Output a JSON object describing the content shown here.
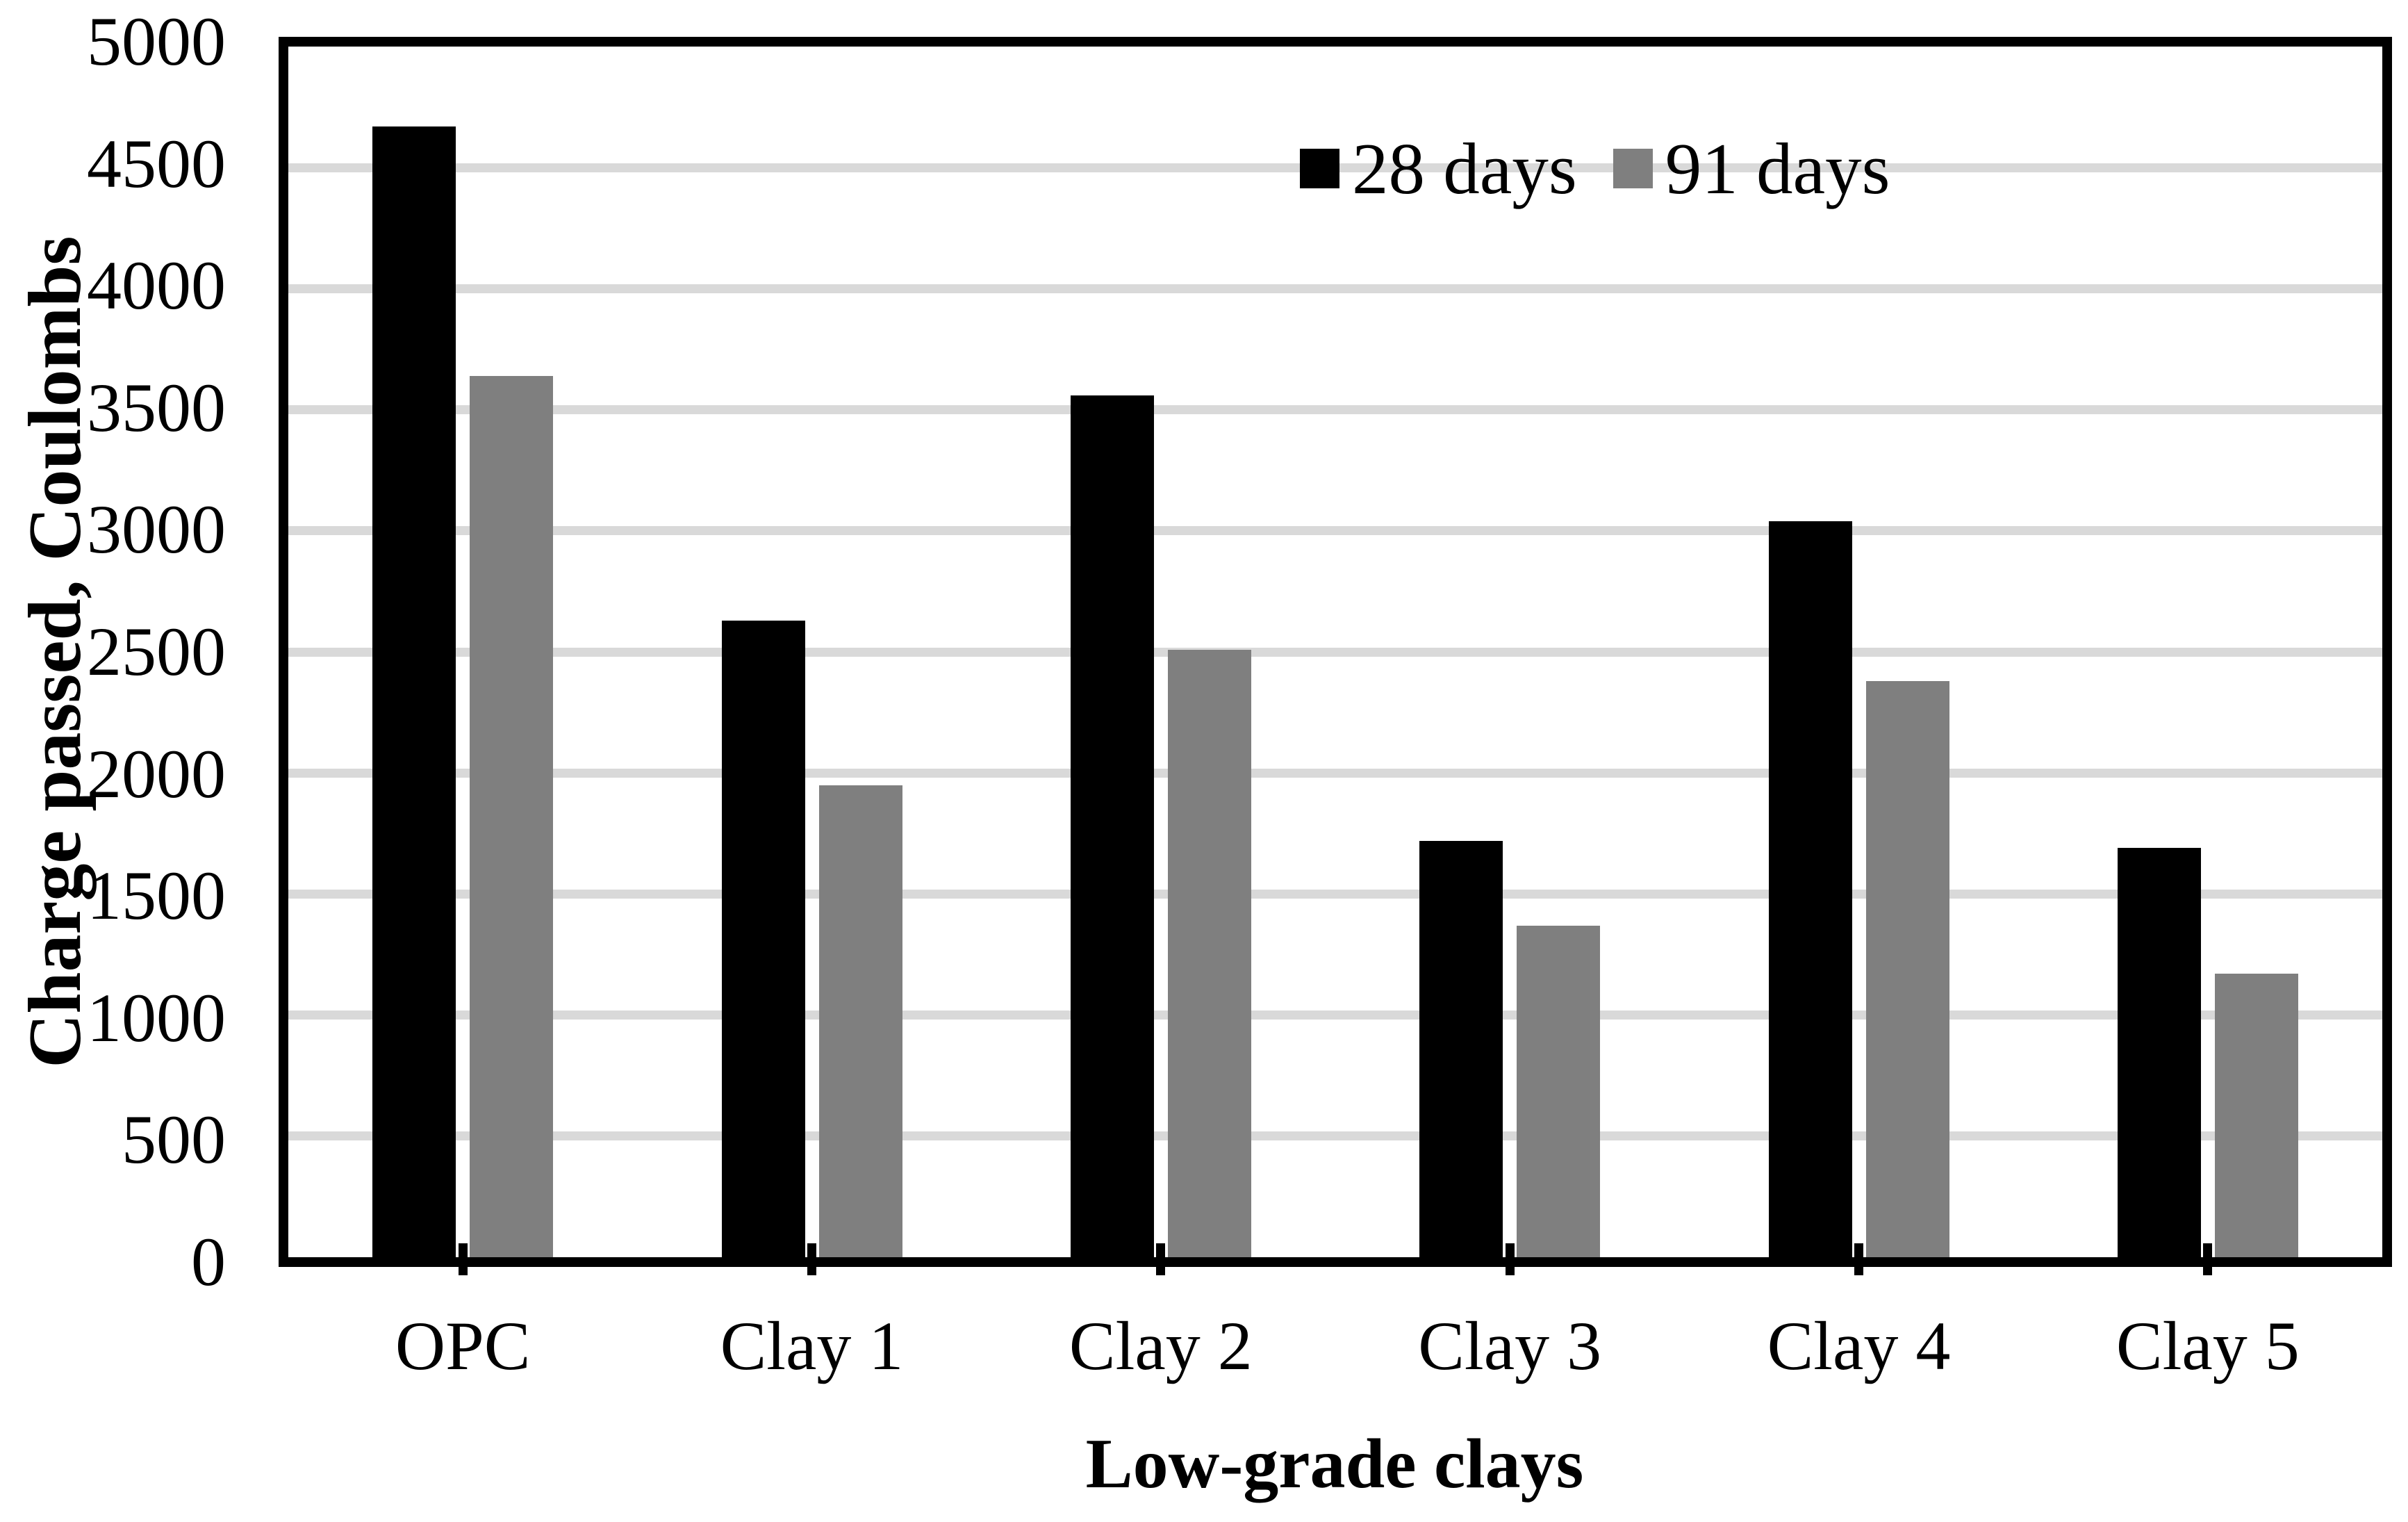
{
  "chart_data": {
    "type": "bar",
    "title": "",
    "categories": [
      "OPC",
      "Clay 1",
      "Clay 2",
      "Clay 3",
      "Clay 4",
      "Clay 5"
    ],
    "series": [
      {
        "name": "28 days",
        "color": "#000000",
        "values": [
          4670,
          2630,
          3560,
          1720,
          3040,
          1690
        ]
      },
      {
        "name": "91 days",
        "color": "#7F7F7F",
        "values": [
          3640,
          1950,
          2510,
          1370,
          2380,
          1170
        ]
      }
    ],
    "xlabel": "Low-grade clays",
    "ylabel": "Charge passed, Coulombs",
    "ylim": [
      0,
      5000
    ],
    "ytick_step": 500,
    "ytick_labels": [
      "0",
      "500",
      "1000",
      "1500",
      "2000",
      "2500",
      "3000",
      "3500",
      "4000",
      "4500",
      "5000"
    ],
    "grid": true,
    "gridline_color": "#D9D9D9",
    "axis_color": "#000000",
    "background_color": "#FFFFFF",
    "legend_position": "inside-top-center"
  }
}
